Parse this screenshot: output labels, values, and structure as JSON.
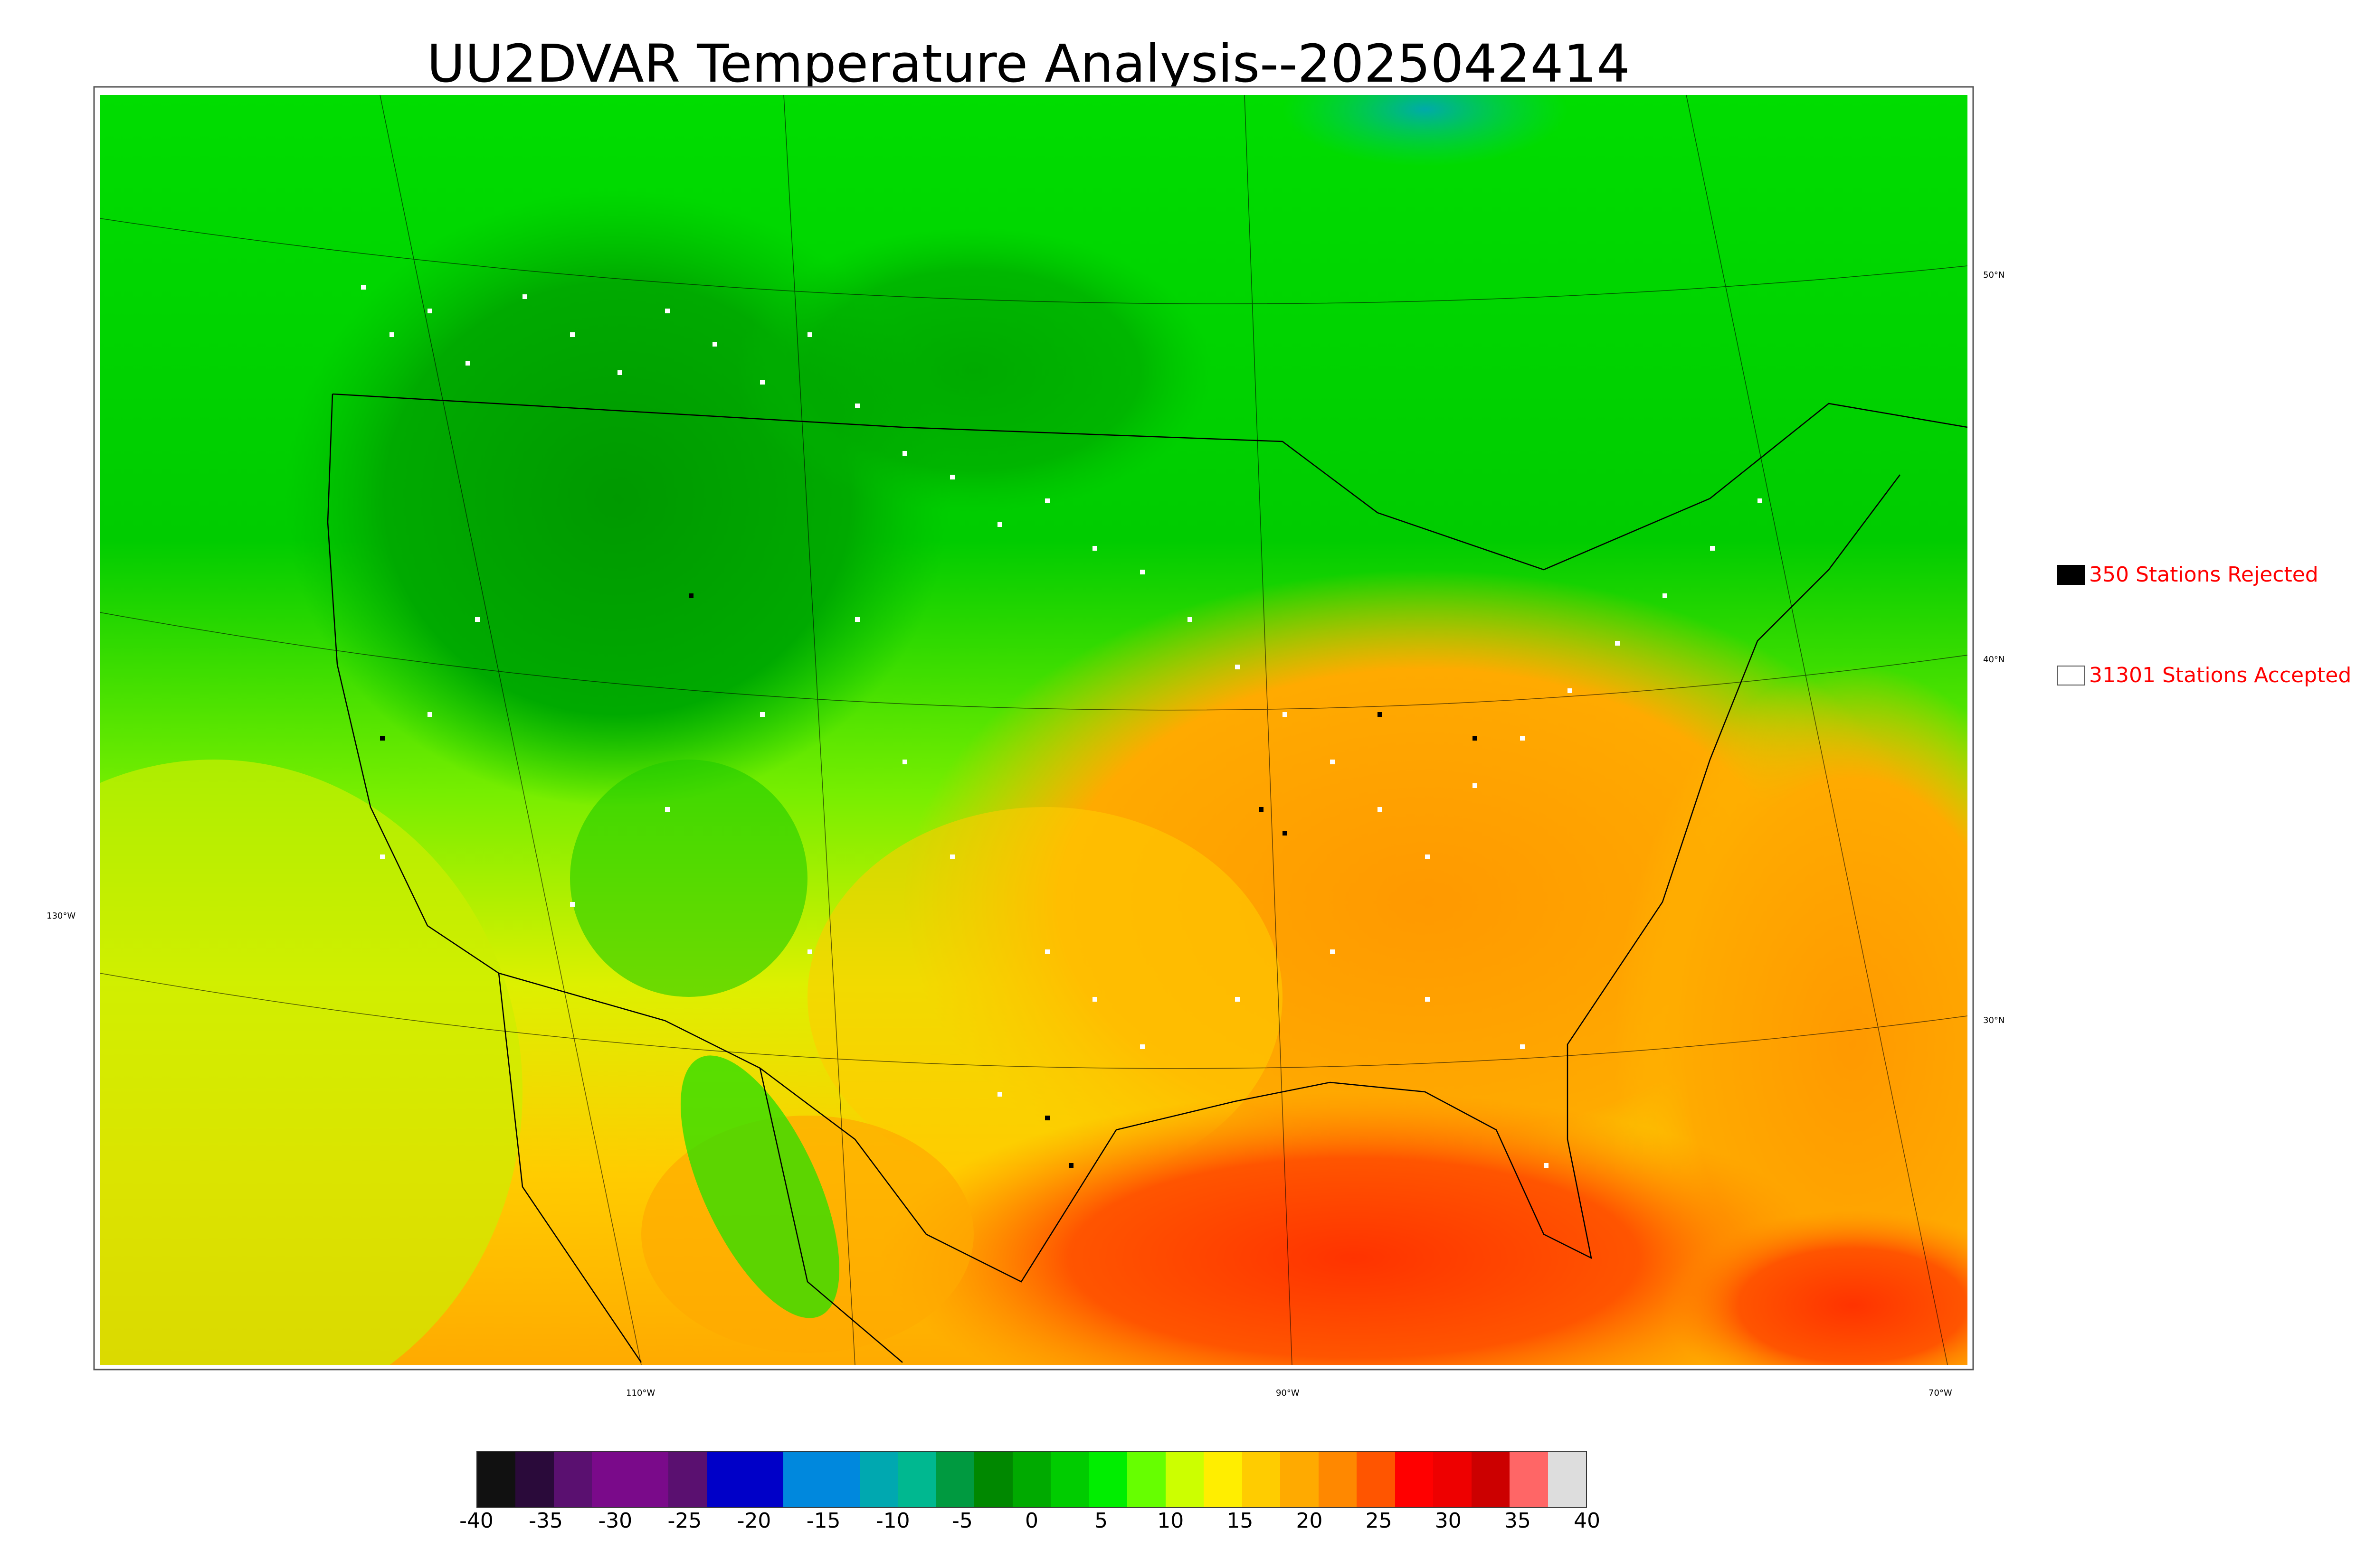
{
  "title": "UU2DVAR Temperature Analysis--2025042414",
  "legend": {
    "rejected_label": "350 Stations Rejected",
    "accepted_label": "31301 Stations Accepted",
    "rejected_color": "#000000",
    "accepted_color": "#ffffff"
  },
  "latitude_labels": [
    "50°N",
    "40°N",
    "30°N"
  ],
  "longitude_labels": [
    "130°W",
    "110°W",
    "90°W",
    "70°W"
  ],
  "colorbar": {
    "min": -40,
    "max": 40,
    "ticks": [
      "-40",
      "-35",
      "-30",
      "-25",
      "-20",
      "-15",
      "-10",
      "-5",
      "0",
      "5",
      "10",
      "15",
      "20",
      "25",
      "30",
      "35",
      "40"
    ],
    "colors": [
      "#111111",
      "#2a0a3a",
      "#5a1070",
      "#7a0a8a",
      "#7a0a8a",
      "#5a1070",
      "#0000c8",
      "#0000c8",
      "#0088dd",
      "#0088dd",
      "#00a8b0",
      "#00b890",
      "#009a40",
      "#008800",
      "#00aa00",
      "#00cc00",
      "#00ee00",
      "#66ff00",
      "#ccff00",
      "#ffee00",
      "#ffcc00",
      "#ffaa00",
      "#ff8800",
      "#ff5500",
      "#ff0000",
      "#ee0000",
      "#cc0000",
      "#ff6666",
      "#dddddd"
    ]
  },
  "colors": {
    "cold": "#00aa00",
    "cool": "#33dd00",
    "mild": "#ccff00",
    "warm": "#ffcc00",
    "hot": "#ff7700",
    "very_hot": "#ff3300"
  }
}
